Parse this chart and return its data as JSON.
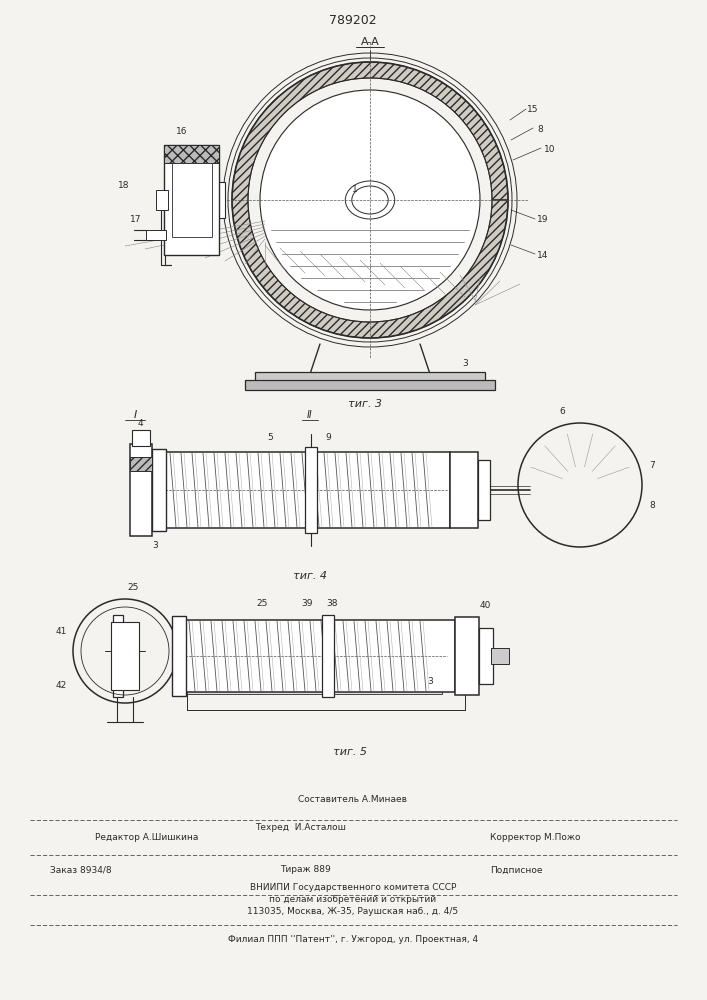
{
  "patent_number": "789202",
  "bg_color": "#f5f3ef",
  "line_color": "#2a2a2a",
  "fig_width": 7.07,
  "fig_height": 10.0,
  "fig3_caption": "τиг. 3",
  "fig4_caption": "τиг. 4",
  "fig5_caption": "τиг. 5",
  "section_AA": "A-A",
  "roman_I": "I",
  "roman_II": "Π",
  "footer_line1_center1": "Составитель А.Минаев",
  "footer_line1_left": "Редактор А.Шишкина",
  "footer_line1_center2": "Техред  И.Асталош",
  "footer_line1_right": "Корректор М.Пожо",
  "footer_order": "Заказ 8934/8",
  "footer_tirazh": "Тираж 889",
  "footer_podp": "Подписное",
  "footer_vniip1": "ВНИИПИ Государственного комитета СССР",
  "footer_vniip2": "по делам изобретений и открытий",
  "footer_addr": "113035, Москва, Ж-35, Раушская наб., д. 4/5",
  "footer_filial": "Филиал ППП ''Патент'', г. Ужгород, ул. Проектная, 4"
}
